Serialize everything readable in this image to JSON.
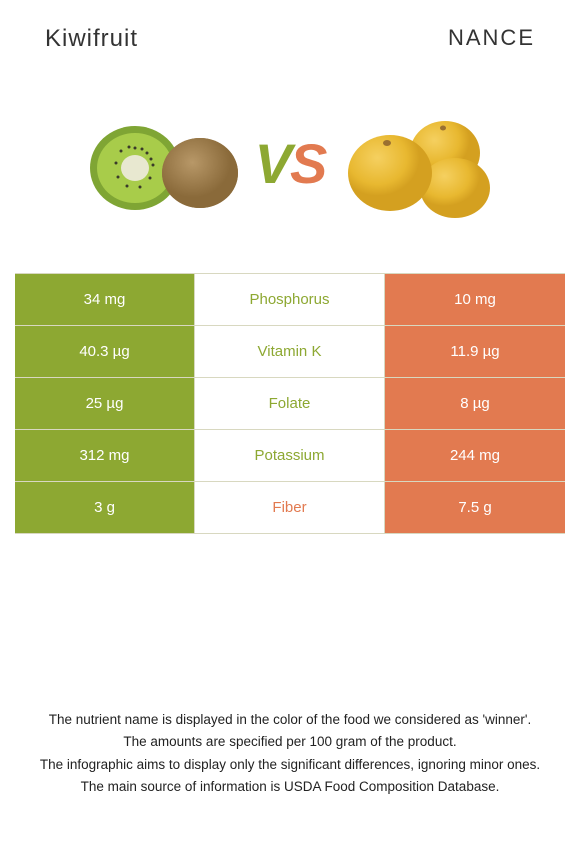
{
  "header": {
    "left_title": "Kiwifruit",
    "right_title": "NANCE"
  },
  "vs": {
    "v": "V",
    "s": "S"
  },
  "colors": {
    "left": "#8da832",
    "right": "#e27a50",
    "row_border": "#d8d8c0",
    "left_light": "#a5bf4f",
    "right_light": "#e88d68"
  },
  "table": {
    "rows": [
      {
        "left": "34 mg",
        "label": "Phosphorus",
        "right": "10 mg",
        "winner": "left"
      },
      {
        "left": "40.3 µg",
        "label": "Vitamin K",
        "right": "11.9 µg",
        "winner": "left"
      },
      {
        "left": "25 µg",
        "label": "Folate",
        "right": "8 µg",
        "winner": "left"
      },
      {
        "left": "312 mg",
        "label": "Potassium",
        "right": "244 mg",
        "winner": "left"
      },
      {
        "left": "3 g",
        "label": "Fiber",
        "right": "7.5 g",
        "winner": "right"
      }
    ]
  },
  "footer": {
    "line1": "The nutrient name is displayed in the color of the food we considered as 'winner'.",
    "line2": "The amounts are specified per 100 gram of the product.",
    "line3": "The infographic aims to display only the significant differences, ignoring minor ones.",
    "line4": "The main source of information is USDA Food Composition Database."
  }
}
